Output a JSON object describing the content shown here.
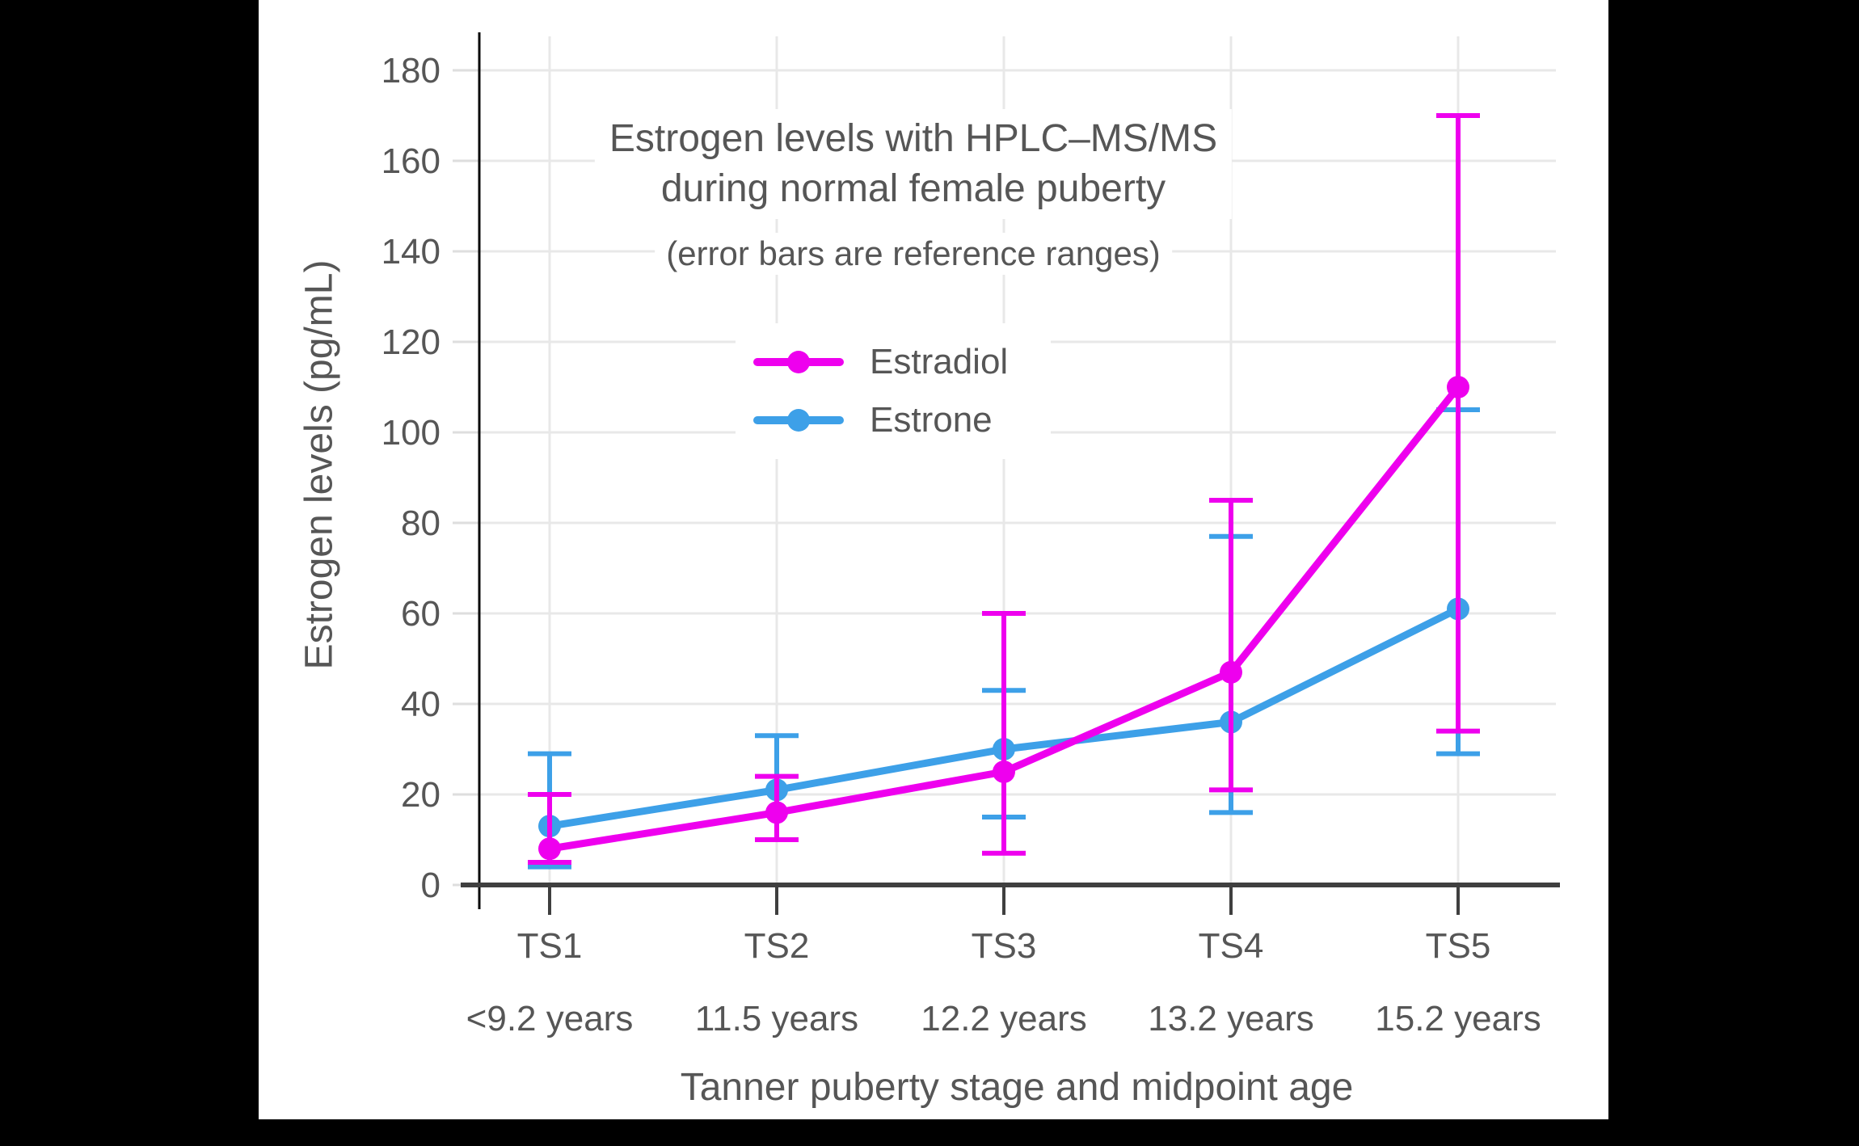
{
  "page": {
    "background": "#000000",
    "panel_background": "#ffffff",
    "text_color": "#565656",
    "grid_color": "#e8e8e8"
  },
  "chart": {
    "title_line1": "Estrogen levels with HPLC–MS/MS",
    "title_line2": "during normal female puberty",
    "subtitle": "(error bars are reference ranges)",
    "x_axis_title": "Tanner puberty stage and midpoint age",
    "y_axis_title": "Estrogen levels (pg/mL)",
    "legend": [
      {
        "label": "Estradiol",
        "color": "#EE00EE"
      },
      {
        "label": "Estrone",
        "color": "#3DA0E8"
      }
    ]
  },
  "chart_data": {
    "type": "line",
    "title": "Estrogen levels with HPLC–MS/MS during normal female puberty",
    "subtitle": "(error bars are reference ranges)",
    "xlabel": "Tanner puberty stage and midpoint age",
    "ylabel": "Estrogen levels (pg/mL)",
    "categories": [
      "TS1",
      "TS2",
      "TS3",
      "TS4",
      "TS5"
    ],
    "category_sublabels": [
      "<9.2 years",
      "11.5 years",
      "12.2 years",
      "13.2 years",
      "15.2 years"
    ],
    "yticks": [
      0,
      20,
      40,
      60,
      80,
      100,
      120,
      140,
      160,
      180
    ],
    "ylim": [
      0,
      188
    ],
    "grid": true,
    "legend_position": "upper-center-inside",
    "error_bars": "reference ranges",
    "series": [
      {
        "name": "Estradiol",
        "color": "#EE00EE",
        "values": [
          8,
          16,
          25,
          47,
          110
        ],
        "error_low": [
          5,
          10,
          7,
          21,
          34
        ],
        "error_high": [
          20,
          24,
          60,
          85,
          170
        ]
      },
      {
        "name": "Estrone",
        "color": "#3DA0E8",
        "values": [
          13,
          21,
          30,
          36,
          61
        ],
        "error_low": [
          4,
          10,
          15,
          16,
          29
        ],
        "error_high": [
          29,
          33,
          43,
          77,
          105
        ]
      }
    ]
  }
}
